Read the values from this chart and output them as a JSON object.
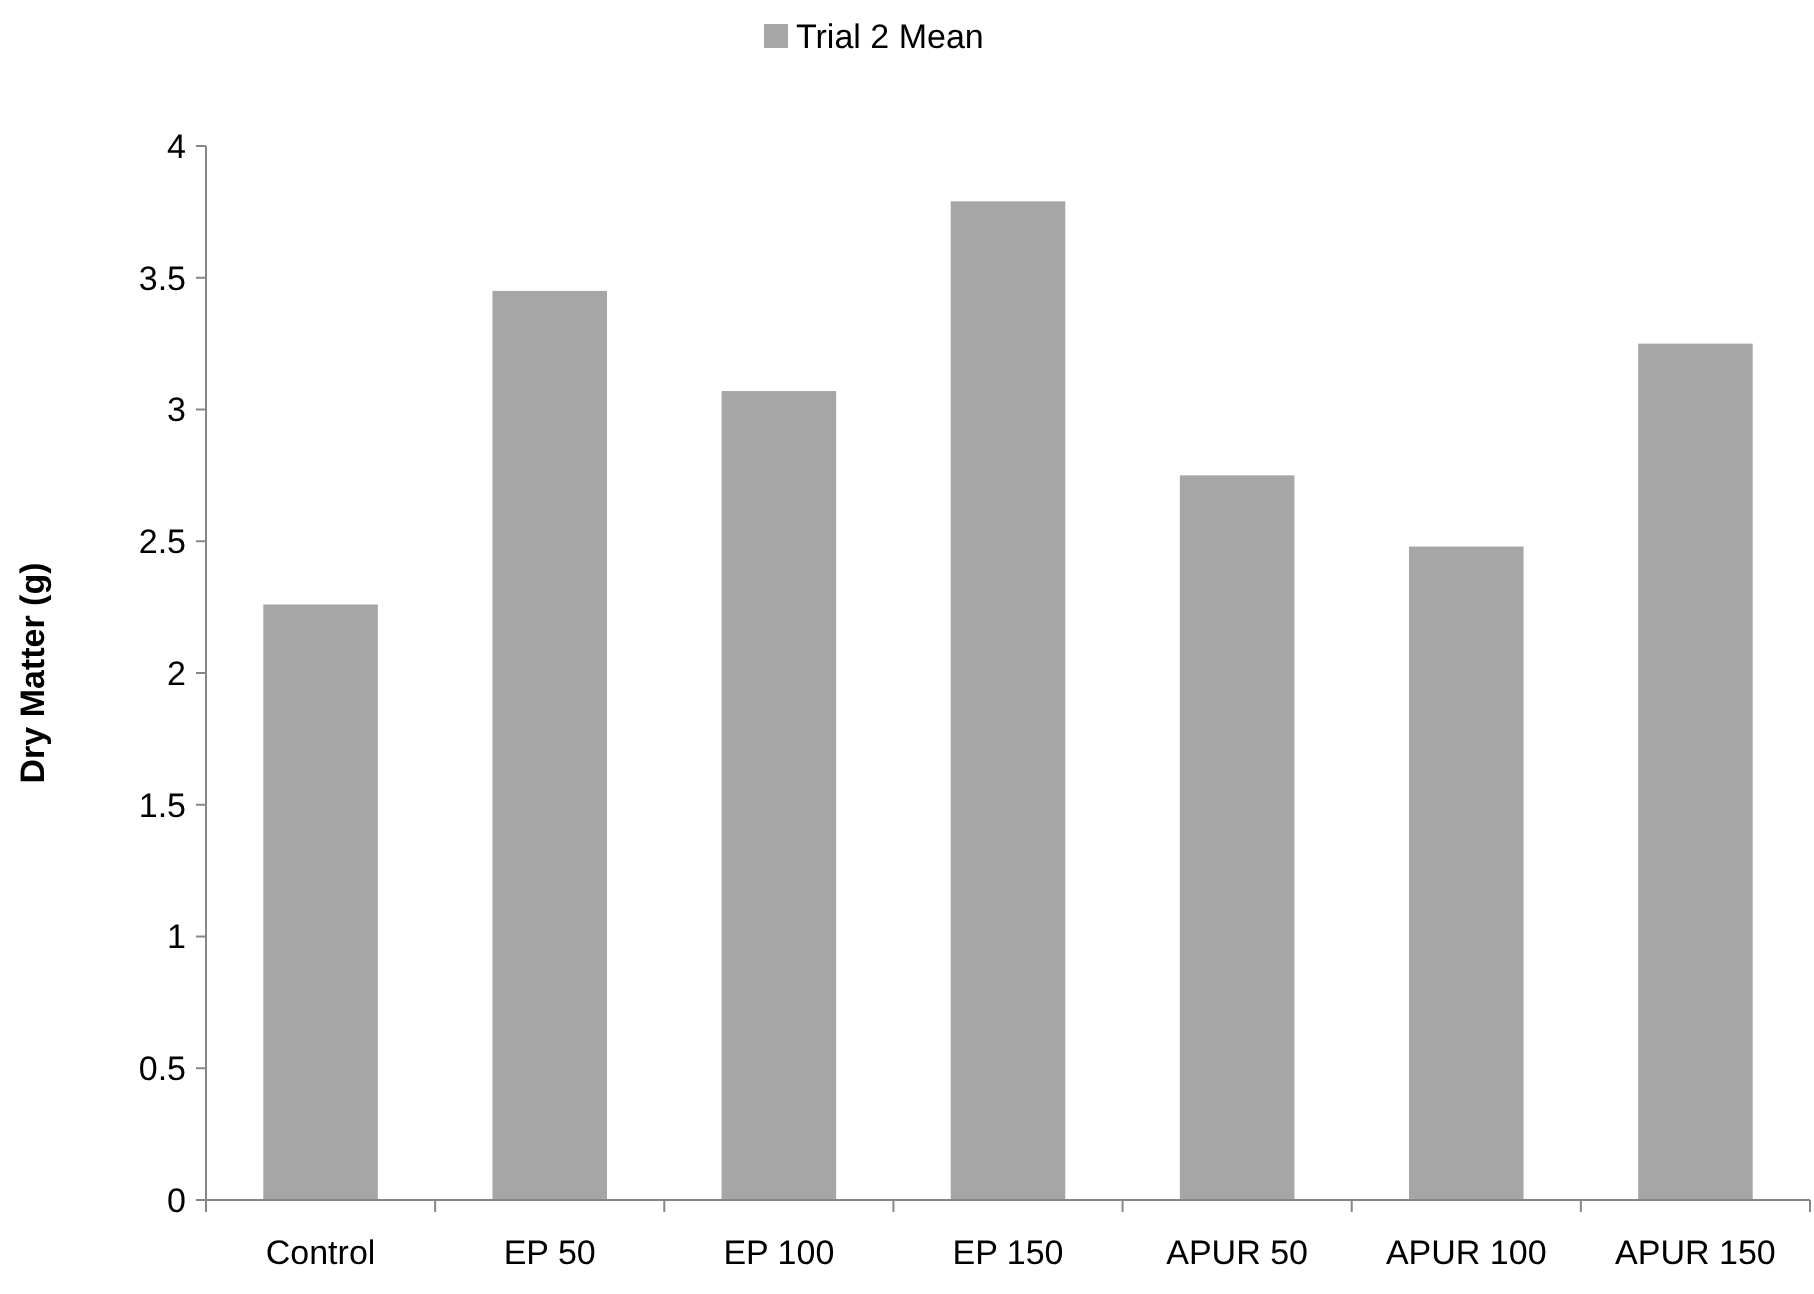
{
  "chart_data": {
    "type": "bar",
    "ylabel": "Dry Matter (g)",
    "categories": [
      "Control",
      "EP 50",
      "EP 100",
      "EP 150",
      "APUR 50",
      "APUR 100",
      "APUR 150"
    ],
    "series": [
      {
        "name": "Trial 2 Mean",
        "color": "#a6a6a6",
        "values": [
          2.26,
          3.45,
          3.07,
          3.79,
          2.75,
          2.48,
          3.25
        ]
      }
    ],
    "ylim": [
      0,
      4
    ],
    "yticks": [
      0,
      0.5,
      1,
      1.5,
      2,
      2.5,
      3,
      3.5,
      4
    ],
    "grid": false,
    "legend": "top"
  }
}
